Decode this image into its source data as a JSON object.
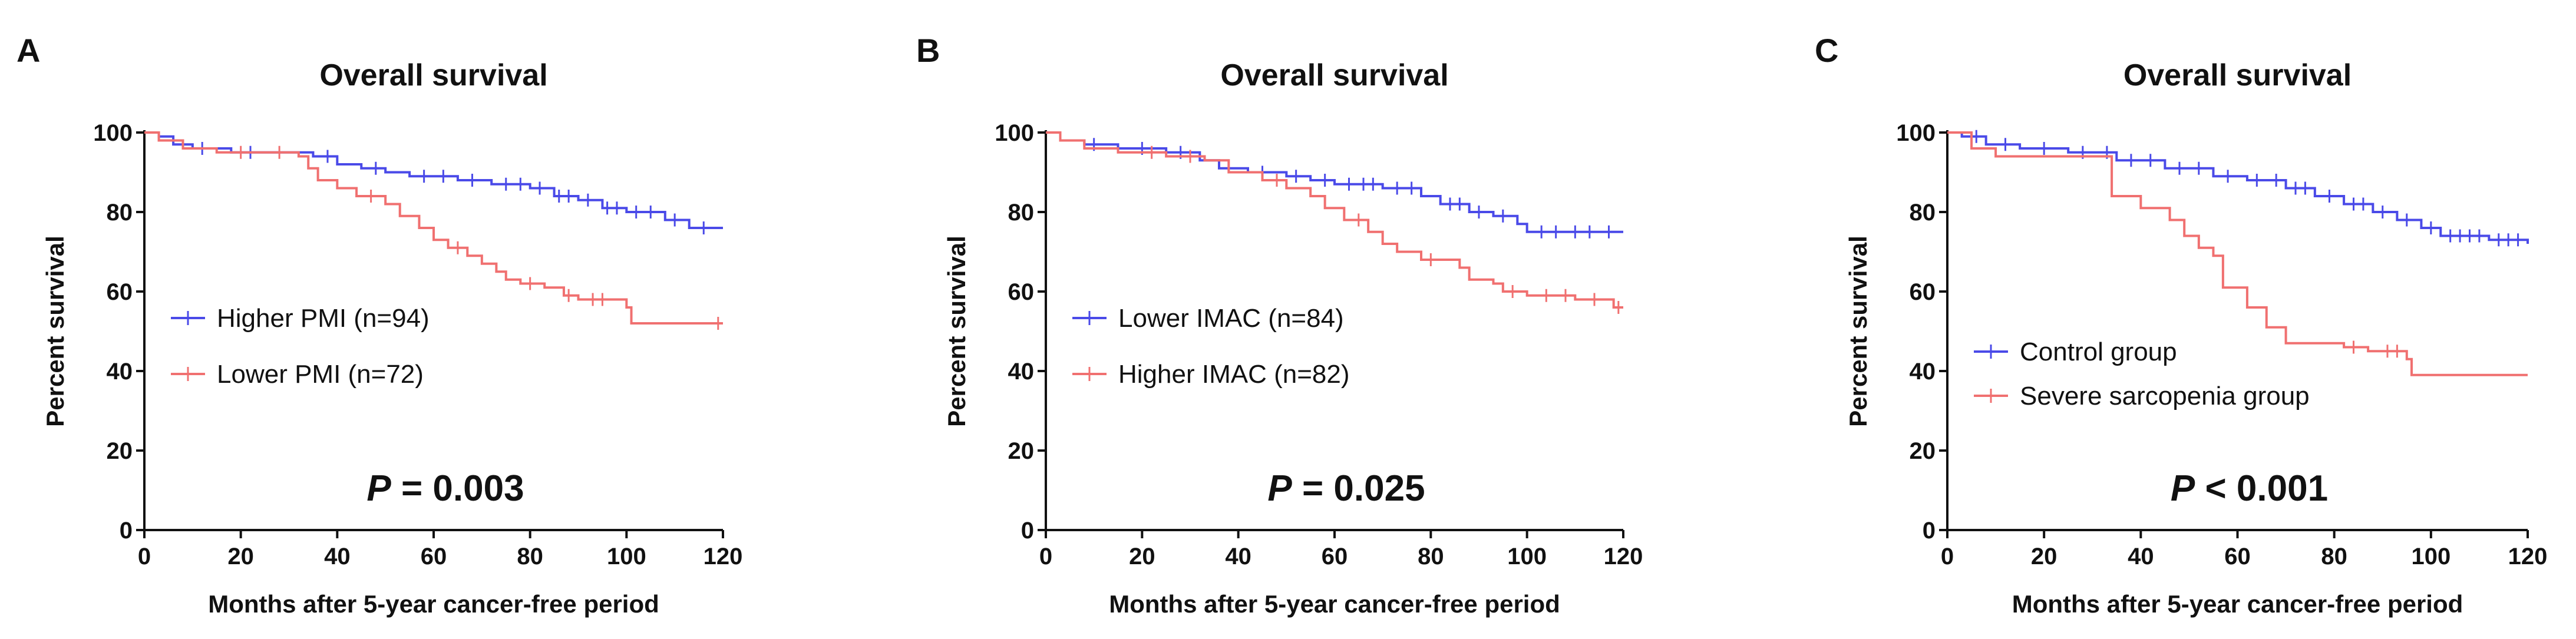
{
  "chart_data": [
    {
      "type": "line",
      "panel": "A",
      "title": "Overall survival",
      "xlabel": "Months after 5-year cancer-free period",
      "ylabel": "Percent survival",
      "xlim": [
        0,
        120
      ],
      "ylim": [
        0,
        100
      ],
      "xticks": [
        0,
        20,
        40,
        60,
        80,
        100,
        120
      ],
      "yticks": [
        0,
        20,
        40,
        60,
        80,
        100
      ],
      "p_symbol": "P",
      "p_text": "= 0.003",
      "legend_position": "center-left",
      "series": [
        {
          "name": "Higher PMI (n=94)",
          "color": "#4a4ae8",
          "points": [
            [
              0,
              100
            ],
            [
              3,
              99
            ],
            [
              6,
              97
            ],
            [
              10,
              96
            ],
            [
              18,
              95
            ],
            [
              30,
              95
            ],
            [
              35,
              94
            ],
            [
              40,
              92
            ],
            [
              45,
              91
            ],
            [
              50,
              90
            ],
            [
              55,
              89
            ],
            [
              65,
              88
            ],
            [
              72,
              87
            ],
            [
              80,
              86
            ],
            [
              85,
              84
            ],
            [
              90,
              83
            ],
            [
              95,
              81
            ],
            [
              100,
              80
            ],
            [
              108,
              78
            ],
            [
              113,
              76
            ],
            [
              120,
              76
            ]
          ],
          "censors": [
            12,
            22,
            38,
            48,
            58,
            62,
            68,
            75,
            78,
            82,
            86,
            88,
            92,
            96,
            98,
            102,
            105,
            110,
            116
          ]
        },
        {
          "name": "Lower PMI (n=72)",
          "color": "#f07070",
          "points": [
            [
              0,
              100
            ],
            [
              3,
              98
            ],
            [
              8,
              96
            ],
            [
              15,
              95
            ],
            [
              25,
              95
            ],
            [
              32,
              94
            ],
            [
              34,
              91
            ],
            [
              36,
              88
            ],
            [
              40,
              86
            ],
            [
              44,
              84
            ],
            [
              50,
              82
            ],
            [
              53,
              79
            ],
            [
              57,
              76
            ],
            [
              60,
              73
            ],
            [
              63,
              71
            ],
            [
              67,
              69
            ],
            [
              70,
              67
            ],
            [
              73,
              65
            ],
            [
              75,
              63
            ],
            [
              78,
              62
            ],
            [
              83,
              61
            ],
            [
              87,
              59
            ],
            [
              90,
              58
            ],
            [
              97,
              58
            ],
            [
              100,
              56
            ],
            [
              101,
              52
            ],
            [
              120,
              52
            ]
          ],
          "censors": [
            20,
            28,
            47,
            65,
            80,
            88,
            93,
            95,
            119
          ]
        }
      ]
    },
    {
      "type": "line",
      "panel": "B",
      "title": "Overall survival",
      "xlabel": "Months after 5-year cancer-free period",
      "ylabel": "Percent survival",
      "xlim": [
        0,
        120
      ],
      "ylim": [
        0,
        100
      ],
      "xticks": [
        0,
        20,
        40,
        60,
        80,
        100,
        120
      ],
      "yticks": [
        0,
        20,
        40,
        60,
        80,
        100
      ],
      "p_symbol": "P",
      "p_text": "= 0.025",
      "legend_position": "center-left",
      "series": [
        {
          "name": "Lower IMAC (n=84)",
          "color": "#4a4ae8",
          "points": [
            [
              0,
              100
            ],
            [
              3,
              98
            ],
            [
              8,
              97
            ],
            [
              15,
              96
            ],
            [
              25,
              95
            ],
            [
              32,
              93
            ],
            [
              36,
              91
            ],
            [
              42,
              90
            ],
            [
              50,
              89
            ],
            [
              55,
              88
            ],
            [
              60,
              87
            ],
            [
              70,
              86
            ],
            [
              78,
              84
            ],
            [
              82,
              82
            ],
            [
              88,
              80
            ],
            [
              93,
              79
            ],
            [
              98,
              77
            ],
            [
              100,
              75
            ],
            [
              120,
              75
            ]
          ],
          "censors": [
            10,
            20,
            28,
            45,
            52,
            58,
            63,
            66,
            68,
            73,
            76,
            84,
            86,
            90,
            95,
            103,
            106,
            110,
            113,
            117
          ]
        },
        {
          "name": "Higher IMAC (n=82)",
          "color": "#f07070",
          "points": [
            [
              0,
              100
            ],
            [
              3,
              98
            ],
            [
              8,
              96
            ],
            [
              15,
              95
            ],
            [
              25,
              94
            ],
            [
              33,
              93
            ],
            [
              38,
              90
            ],
            [
              45,
              88
            ],
            [
              50,
              86
            ],
            [
              55,
              84
            ],
            [
              58,
              81
            ],
            [
              62,
              78
            ],
            [
              67,
              75
            ],
            [
              70,
              72
            ],
            [
              73,
              70
            ],
            [
              78,
              68
            ],
            [
              84,
              68
            ],
            [
              86,
              66
            ],
            [
              88,
              63
            ],
            [
              93,
              62
            ],
            [
              95,
              60
            ],
            [
              100,
              59
            ],
            [
              110,
              58
            ],
            [
              118,
              56
            ],
            [
              120,
              56
            ]
          ],
          "censors": [
            22,
            30,
            48,
            65,
            80,
            97,
            104,
            108,
            114,
            119
          ]
        }
      ]
    },
    {
      "type": "line",
      "panel": "C",
      "title": "Overall survival",
      "xlabel": "Months after 5-year cancer-free period",
      "ylabel": "Percent survival",
      "xlim": [
        0,
        120
      ],
      "ylim": [
        0,
        100
      ],
      "xticks": [
        0,
        20,
        40,
        60,
        80,
        100,
        120
      ],
      "yticks": [
        0,
        20,
        40,
        60,
        80,
        100
      ],
      "p_symbol": "P",
      "p_text": "< 0.001",
      "legend_position": "lower-left",
      "series": [
        {
          "name": "Control group",
          "color": "#4a4ae8",
          "points": [
            [
              0,
              100
            ],
            [
              3,
              99
            ],
            [
              8,
              97
            ],
            [
              15,
              96
            ],
            [
              25,
              95
            ],
            [
              35,
              93
            ],
            [
              45,
              91
            ],
            [
              55,
              89
            ],
            [
              62,
              88
            ],
            [
              70,
              86
            ],
            [
              76,
              84
            ],
            [
              82,
              82
            ],
            [
              88,
              80
            ],
            [
              93,
              78
            ],
            [
              98,
              76
            ],
            [
              102,
              74
            ],
            [
              112,
              73
            ],
            [
              120,
              72
            ]
          ],
          "censors": [
            6,
            12,
            20,
            28,
            33,
            38,
            42,
            48,
            52,
            58,
            64,
            68,
            72,
            74,
            79,
            84,
            86,
            90,
            95,
            100,
            104,
            106,
            108,
            110,
            114,
            116,
            118
          ]
        },
        {
          "name": "Severe sarcopenia group",
          "color": "#f07070",
          "points": [
            [
              0,
              100
            ],
            [
              5,
              96
            ],
            [
              10,
              94
            ],
            [
              32,
              94
            ],
            [
              34,
              84
            ],
            [
              40,
              81
            ],
            [
              46,
              78
            ],
            [
              49,
              74
            ],
            [
              52,
              71
            ],
            [
              55,
              69
            ],
            [
              57,
              61
            ],
            [
              62,
              56
            ],
            [
              66,
              51
            ],
            [
              70,
              47
            ],
            [
              75,
              47
            ],
            [
              82,
              46
            ],
            [
              87,
              45
            ],
            [
              95,
              43
            ],
            [
              96,
              39
            ],
            [
              120,
              39
            ]
          ],
          "censors": [
            84,
            91,
            93
          ]
        }
      ]
    }
  ]
}
